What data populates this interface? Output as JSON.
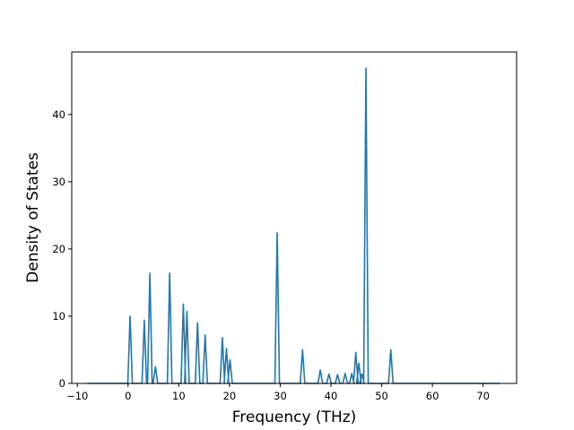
{
  "chart_data": {
    "type": "line",
    "title": "",
    "xlabel": "Frequency (THz)",
    "ylabel": "Density of States",
    "xlim": [
      -11.1,
      76.6
    ],
    "ylim": [
      0,
      49.3
    ],
    "xticks": [
      -10,
      0,
      10,
      20,
      30,
      40,
      50,
      60,
      70
    ],
    "yticks": [
      0,
      10,
      20,
      30,
      40
    ],
    "grid": false,
    "legend": "none",
    "line_color": "#1f77b4",
    "x_start": -8.0,
    "x_end": 73.3,
    "peak_halfwidth": 0.45,
    "peaks": [
      {
        "x": 0.4,
        "y": 10.0
      },
      {
        "x": 3.2,
        "y": 9.4
      },
      {
        "x": 4.3,
        "y": 16.4
      },
      {
        "x": 5.4,
        "y": 2.5
      },
      {
        "x": 8.2,
        "y": 16.4
      },
      {
        "x": 10.9,
        "y": 11.8
      },
      {
        "x": 11.6,
        "y": 10.7
      },
      {
        "x": 13.7,
        "y": 9.0
      },
      {
        "x": 15.2,
        "y": 7.2
      },
      {
        "x": 18.6,
        "y": 6.8
      },
      {
        "x": 19.4,
        "y": 5.2
      },
      {
        "x": 20.1,
        "y": 3.5
      },
      {
        "x": 29.4,
        "y": 22.4
      },
      {
        "x": 34.4,
        "y": 5.0
      },
      {
        "x": 37.9,
        "y": 2.0
      },
      {
        "x": 39.6,
        "y": 1.4
      },
      {
        "x": 41.3,
        "y": 1.3
      },
      {
        "x": 42.8,
        "y": 1.5
      },
      {
        "x": 44.1,
        "y": 1.5
      },
      {
        "x": 44.9,
        "y": 4.6
      },
      {
        "x": 45.5,
        "y": 3.0
      },
      {
        "x": 46.1,
        "y": 1.4
      },
      {
        "x": 46.9,
        "y": 46.9
      },
      {
        "x": 51.8,
        "y": 5.0
      }
    ]
  }
}
